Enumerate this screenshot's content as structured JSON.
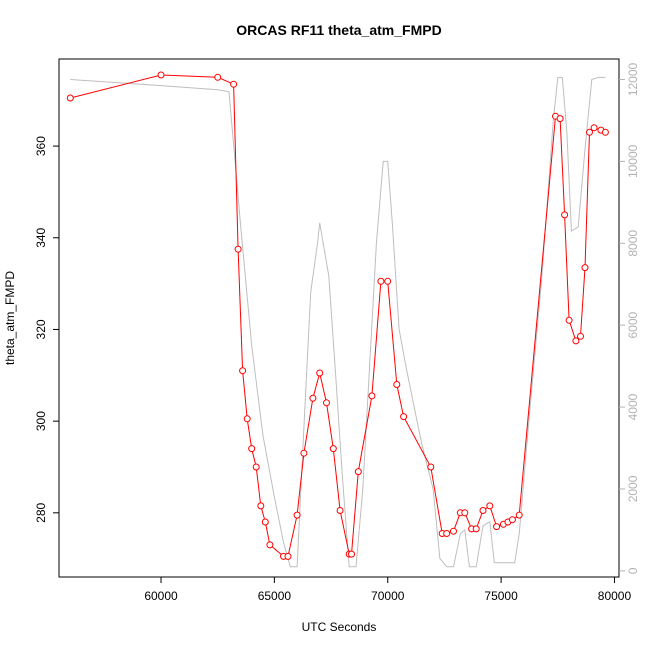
{
  "chart_data": {
    "type": "line",
    "title": "ORCAS RF11 theta_atm_FMPD",
    "xlabel": "UTC Seconds",
    "ylabel": "theta_atm_FMPD",
    "xlim": [
      55500,
      80200
    ],
    "ylim": [
      266,
      379
    ],
    "y2lim": [
      -150,
      12500
    ],
    "x_ticks": [
      60000,
      65000,
      70000,
      75000,
      80000
    ],
    "y_ticks": [
      280,
      300,
      320,
      340,
      360
    ],
    "y2_ticks": [
      0,
      2000,
      4000,
      6000,
      8000,
      10000,
      12000
    ],
    "grid": false,
    "series": [
      {
        "color": "#ff0000",
        "axis": "left",
        "marker": "open-circle",
        "x": [
          56000,
          60000,
          62500,
          63200,
          63400,
          63600,
          63800,
          64000,
          64200,
          64400,
          64600,
          64800,
          65400,
          65600,
          66000,
          66300,
          66700,
          67000,
          67300,
          67600,
          67900,
          68300,
          68400,
          68700,
          69300,
          69700,
          70000,
          70400,
          70700,
          71900,
          72400,
          72600,
          72900,
          73200,
          73400,
          73700,
          73900,
          74200,
          74500,
          74800,
          75100,
          75300,
          75500,
          75800,
          77400,
          77600,
          77800,
          78000,
          78300,
          78500,
          78700,
          78900,
          79100,
          79400,
          79600
        ],
        "values": [
          370.5,
          375.5,
          375,
          373.5,
          337.5,
          311,
          300.5,
          294,
          290,
          281.5,
          278,
          273,
          270.5,
          270.5,
          279.5,
          293,
          305,
          310.5,
          304,
          294,
          280.5,
          271,
          271,
          289,
          305.5,
          330.5,
          330.5,
          308,
          301,
          290,
          275.5,
          275.5,
          276,
          280,
          280,
          276.5,
          276.5,
          280.5,
          281.5,
          277,
          277.5,
          278,
          278.5,
          279.5,
          366.5,
          366,
          345,
          322,
          317.5,
          318.5,
          333.5,
          363,
          364,
          363.5,
          363
        ]
      },
      {
        "color": "#bebebe",
        "axis": "right",
        "marker": "none",
        "x": [
          56000,
          60000,
          62500,
          63000,
          63500,
          64000,
          64500,
          65000,
          65400,
          65700,
          66000,
          66300,
          66600,
          66900,
          67000,
          67400,
          67700,
          68000,
          68300,
          68600,
          68900,
          69200,
          69500,
          69800,
          70000,
          70200,
          70500,
          70800,
          71200,
          71500,
          72000,
          72300,
          72600,
          72900,
          73200,
          73400,
          73600,
          73900,
          74200,
          74500,
          74700,
          75000,
          75300,
          75600,
          75800,
          76200,
          76800,
          77300,
          77500,
          77700,
          77900,
          78100,
          78400,
          78700,
          79000,
          79300,
          79600
        ],
        "values": [
          12000,
          11850,
          11750,
          11700,
          8500,
          5500,
          3300,
          1800,
          700,
          100,
          100,
          3500,
          6800,
          8000,
          8500,
          7200,
          4800,
          2300,
          100,
          100,
          2000,
          5000,
          8000,
          10000,
          10000,
          8500,
          5900,
          5000,
          3900,
          3100,
          2000,
          300,
          100,
          100,
          900,
          1000,
          100,
          100,
          1100,
          1200,
          200,
          200,
          200,
          200,
          900,
          3500,
          7200,
          11000,
          12050,
          12050,
          10700,
          8300,
          8400,
          10300,
          12000,
          12050,
          12050
        ]
      }
    ]
  }
}
